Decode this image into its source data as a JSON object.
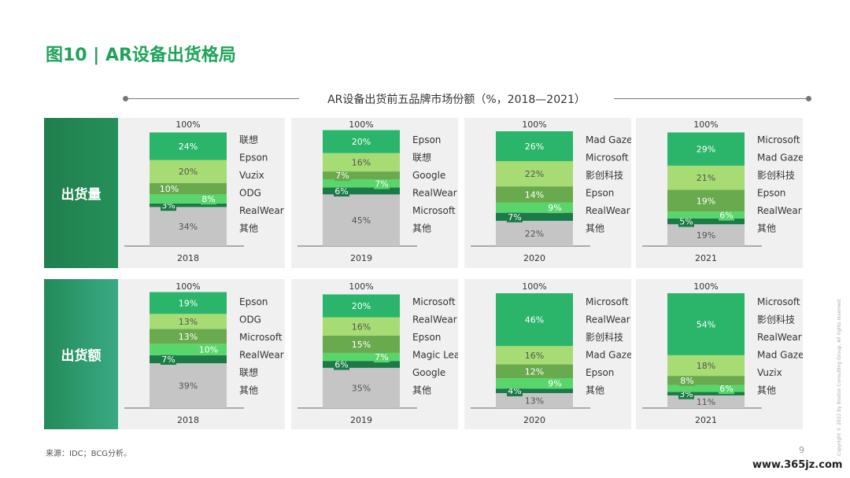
{
  "page": {
    "title": "图10 | AR设备出货格局",
    "source": "来源：IDC；BCG分析。",
    "page_number": "9",
    "copyright": "Copyright © 2022 by Boston Consulting Group. All rights reserved.",
    "watermark": "www.365jz.com"
  },
  "colors": {
    "c1": "#2bb56a",
    "c2": "#a6dc73",
    "c3": "#6aaa4e",
    "c4": "#59d66b",
    "c5": "#1c7a48",
    "other": "#c5c5c5",
    "rowlabel_top": "#1f7e4d",
    "rowlabel_bottom": "#2a9a72"
  },
  "chart_data": {
    "type": "bar",
    "title": "AR设备出货前五品牌市场份额（%，2018—2021）",
    "top_label": "100%",
    "rows": [
      {
        "label": "出货量",
        "panels": [
          {
            "year": "2018",
            "segments": [
              {
                "name": "其他",
                "value": 34,
                "label": "34%",
                "color": "other"
              },
              {
                "name": "RealWear",
                "value": 3,
                "label": "3%",
                "color": "c5"
              },
              {
                "name": "ODG",
                "value": 8,
                "label": "8%",
                "color": "c4"
              },
              {
                "name": "Vuzix",
                "value": 10,
                "label": "10%",
                "color": "c3"
              },
              {
                "name": "Epson",
                "value": 20,
                "label": "20%",
                "color": "c2"
              },
              {
                "name": "联想",
                "value": 24,
                "label": "24%",
                "color": "c1"
              }
            ]
          },
          {
            "year": "2019",
            "segments": [
              {
                "name": "其他",
                "value": 45,
                "label": "45%",
                "color": "other"
              },
              {
                "name": "Microsoft",
                "value": 6,
                "label": "6%",
                "color": "c5"
              },
              {
                "name": "RealWear",
                "value": 7,
                "label": "7%",
                "color": "c4"
              },
              {
                "name": "Google",
                "value": 7,
                "label": "7%",
                "color": "c3"
              },
              {
                "name": "联想",
                "value": 16,
                "label": "16%",
                "color": "c2"
              },
              {
                "name": "Epson",
                "value": 20,
                "label": "20%",
                "color": "c1"
              }
            ]
          },
          {
            "year": "2020",
            "segments": [
              {
                "name": "其他",
                "value": 22,
                "label": "22%",
                "color": "other"
              },
              {
                "name": "RealWear",
                "value": 7,
                "label": "7%",
                "color": "c5"
              },
              {
                "name": "Epson",
                "value": 9,
                "label": "9%",
                "color": "c4"
              },
              {
                "name": "影创科技",
                "value": 14,
                "label": "14%",
                "color": "c3"
              },
              {
                "name": "Microsoft",
                "value": 22,
                "label": "22%",
                "color": "c2"
              },
              {
                "name": "Mad Gaze",
                "value": 26,
                "label": "26%",
                "color": "c1"
              }
            ]
          },
          {
            "year": "2021",
            "segments": [
              {
                "name": "其他",
                "value": 19,
                "label": "19%",
                "color": "other"
              },
              {
                "name": "RealWear",
                "value": 5,
                "label": "5%",
                "color": "c5"
              },
              {
                "name": "Epson",
                "value": 6,
                "label": "6%",
                "color": "c4"
              },
              {
                "name": "影创科技",
                "value": 19,
                "label": "19%",
                "color": "c3"
              },
              {
                "name": "Mad Gaze",
                "value": 21,
                "label": "21%",
                "color": "c2"
              },
              {
                "name": "Microsoft",
                "value": 29,
                "label": "29%",
                "color": "c1"
              }
            ]
          }
        ]
      },
      {
        "label": "出货额",
        "panels": [
          {
            "year": "2018",
            "segments": [
              {
                "name": "其他",
                "value": 39,
                "label": "39%",
                "color": "other"
              },
              {
                "name": "联想",
                "value": 7,
                "label": "7%",
                "color": "c5"
              },
              {
                "name": "RealWear",
                "value": 10,
                "label": "10%",
                "color": "c4"
              },
              {
                "name": "Microsoft",
                "value": 13,
                "label": "13%",
                "color": "c3"
              },
              {
                "name": "ODG",
                "value": 13,
                "label": "13%",
                "color": "c2"
              },
              {
                "name": "Epson",
                "value": 19,
                "label": "19%",
                "color": "c1"
              }
            ]
          },
          {
            "year": "2019",
            "segments": [
              {
                "name": "其他",
                "value": 35,
                "label": "35%",
                "color": "other"
              },
              {
                "name": "Google",
                "value": 6,
                "label": "6%",
                "color": "c5"
              },
              {
                "name": "Magic Leap",
                "value": 7,
                "label": "7%",
                "color": "c4"
              },
              {
                "name": "Epson",
                "value": 15,
                "label": "15%",
                "color": "c3"
              },
              {
                "name": "RealWear",
                "value": 16,
                "label": "16%",
                "color": "c2"
              },
              {
                "name": "Microsoft",
                "value": 20,
                "label": "20%",
                "color": "c1"
              }
            ]
          },
          {
            "year": "2020",
            "segments": [
              {
                "name": "其他",
                "value": 13,
                "label": "13%",
                "color": "other"
              },
              {
                "name": "Epson",
                "value": 4,
                "label": "4%",
                "color": "c5"
              },
              {
                "name": "Mad Gaze",
                "value": 9,
                "label": "9%",
                "color": "c4"
              },
              {
                "name": "影创科技",
                "value": 12,
                "label": "12%",
                "color": "c3"
              },
              {
                "name": "RealWear",
                "value": 16,
                "label": "16%",
                "color": "c2"
              },
              {
                "name": "Microsoft",
                "value": 46,
                "label": "46%",
                "color": "c1"
              }
            ]
          },
          {
            "year": "2021",
            "segments": [
              {
                "name": "其他",
                "value": 11,
                "label": "11%",
                "color": "other"
              },
              {
                "name": "Vuzix",
                "value": 3,
                "label": "3%",
                "color": "c5"
              },
              {
                "name": "Mad Gaze",
                "value": 6,
                "label": "6%",
                "color": "c4"
              },
              {
                "name": "RealWear",
                "value": 8,
                "label": "8%",
                "color": "c3"
              },
              {
                "name": "影创科技",
                "value": 18,
                "label": "18%",
                "color": "c2"
              },
              {
                "name": "Microsoft",
                "value": 54,
                "label": "54%",
                "color": "c1"
              }
            ]
          }
        ]
      }
    ]
  }
}
